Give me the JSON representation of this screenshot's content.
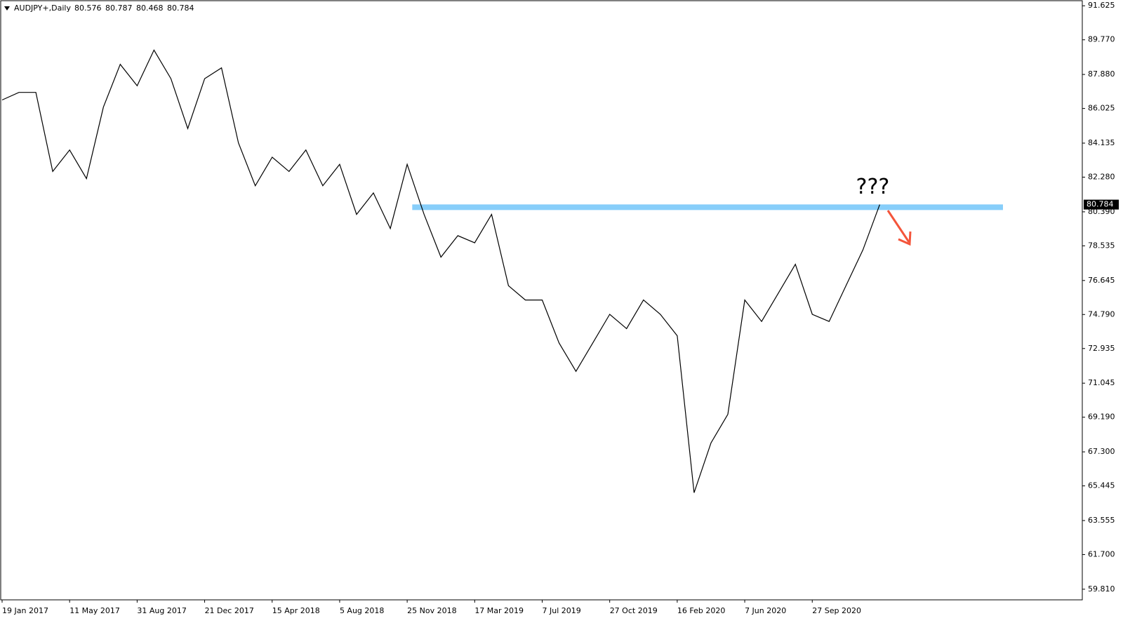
{
  "chart_data": {
    "type": "line",
    "title": "AUDJPY+,Daily",
    "ohlc": [
      80.576,
      80.787,
      80.468,
      80.784
    ],
    "annotation": "???",
    "categories": [
      "19 Jan 2017",
      null,
      null,
      null,
      "11 May 2017",
      null,
      null,
      null,
      "31 Aug 2017",
      null,
      null,
      null,
      "21 Dec 2017",
      null,
      null,
      null,
      "15 Apr 2018",
      null,
      null,
      null,
      "5 Aug 2018",
      null,
      null,
      null,
      "25 Nov 2018",
      null,
      null,
      null,
      "17 Mar 2019",
      null,
      null,
      null,
      "7 Jul 2019",
      null,
      null,
      null,
      "27 Oct 2019",
      null,
      null,
      null,
      "16 Feb 2020",
      null,
      null,
      null,
      "7 Jun 2020",
      null,
      null,
      null,
      "27 Sep 2020",
      null,
      null,
      null,
      null
    ],
    "series": [
      {
        "color": "#000000",
        "values": [
          86.49,
          86.9,
          86.9,
          82.59,
          83.76,
          82.2,
          86.1,
          88.43,
          87.26,
          89.21,
          87.65,
          84.93,
          87.65,
          88.24,
          84.15,
          81.81,
          83.37,
          82.59,
          83.76,
          81.81,
          82.98,
          80.25,
          81.42,
          79.48,
          82.98,
          80.25,
          77.92,
          79.09,
          78.7,
          80.25,
          76.36,
          75.58,
          75.58,
          73.24,
          71.69,
          73.24,
          74.8,
          74.02,
          75.58,
          74.8,
          73.63,
          65.07,
          67.79,
          69.35,
          75.58,
          74.41,
          75.97,
          77.53,
          74.8,
          74.41,
          76.36,
          78.31,
          80.784
        ]
      }
    ],
    "resistance": {
      "value": 80.64,
      "color": "#87cefa",
      "x": [
        24.3,
        59.3
      ]
    },
    "xlim": [
      0,
      64
    ],
    "ylim": [
      59.23,
      91.94
    ],
    "yticks": [
      91.625,
      {
        "value": 89.77,
        "label": "89.770"
      },
      {
        "value": 87.88,
        "label": "87.880"
      },
      86.025,
      84.135,
      {
        "value": 82.28,
        "label": "82.280"
      },
      {
        "value": 80.39,
        "label": "80.390"
      },
      78.535,
      76.645,
      {
        "value": 74.79,
        "label": "74.790"
      },
      72.935,
      71.045,
      {
        "value": 69.19,
        "label": "69.190"
      },
      {
        "value": 67.3,
        "label": "67.300"
      },
      65.445,
      63.555,
      {
        "value": 61.7,
        "label": "61.700"
      },
      {
        "value": 59.81,
        "label": "59.810"
      }
    ]
  }
}
